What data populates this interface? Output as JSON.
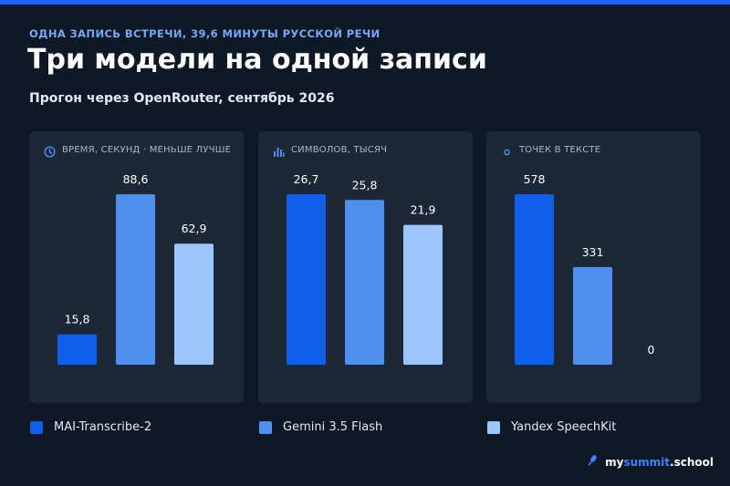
{
  "header": {
    "eyebrow": "ОДНА ЗАПИСЬ ВСТРЕЧИ, 39,6 МИНУТЫ РУССКОЙ РЕЧИ",
    "title": "Три модели на одной записи",
    "subtitle": "Прогон через OpenRouter, сентябрь 2026"
  },
  "colors": {
    "accent": "#1c64f2",
    "mai": "#0f5fe8",
    "gemini": "#4f8ff0",
    "yandex": "#9cc6fb"
  },
  "icons": {
    "panel_0": "clock-icon",
    "panel_1": "bar-chart-icon",
    "panel_2": "dot-icon",
    "brand": "microphone-icon"
  },
  "chart_data": [
    {
      "type": "bar",
      "title": "ВРЕМЯ, СЕКУНД · МЕНЬШЕ ЛУЧШЕ",
      "categories": [
        "MAI-Transcribe-2",
        "Gemini 3.5 Flash",
        "Yandex SpeechKit"
      ],
      "values": [
        15.8,
        88.6,
        62.9
      ],
      "labels": [
        "15,8",
        "88,6",
        "62,9"
      ],
      "ylim": [
        0,
        88.6
      ]
    },
    {
      "type": "bar",
      "title": "СИМВОЛОВ, ТЫСЯЧ",
      "categories": [
        "MAI-Transcribe-2",
        "Gemini 3.5 Flash",
        "Yandex SpeechKit"
      ],
      "values": [
        26.7,
        25.8,
        21.9
      ],
      "labels": [
        "26,7",
        "25,8",
        "21,9"
      ],
      "ylim": [
        0,
        26.7
      ]
    },
    {
      "type": "bar",
      "title": "ТОЧЕК В ТЕКСТЕ",
      "categories": [
        "MAI-Transcribe-2",
        "Gemini 3.5 Flash",
        "Yandex SpeechKit"
      ],
      "values": [
        578,
        331,
        0
      ],
      "labels": [
        "578",
        "331",
        "0"
      ],
      "ylim": [
        0,
        578
      ]
    }
  ],
  "legend": [
    {
      "label": "MAI-Transcribe-2"
    },
    {
      "label": "Gemini 3.5 Flash"
    },
    {
      "label": "Yandex SpeechKit"
    }
  ],
  "brand": {
    "prefix": "my",
    "accent": "summit",
    "suffix": ".school"
  }
}
